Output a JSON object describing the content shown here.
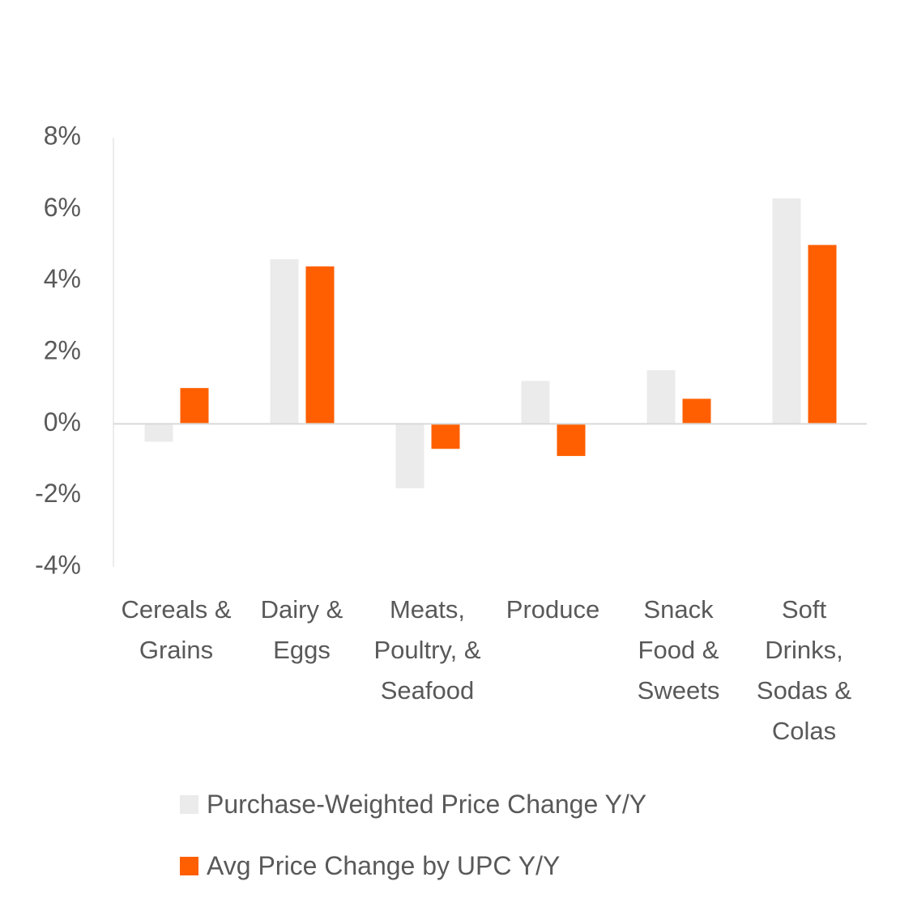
{
  "chart_data": {
    "type": "bar",
    "categories": [
      "Cereals & Grains",
      "Dairy & Eggs",
      "Meats, Poultry, & Seafood",
      "Produce",
      "Snack Food & Sweets",
      "Soft Drinks, Sodas & Colas"
    ],
    "series": [
      {
        "name": "Purchase-Weighted Price Change Y/Y",
        "color": "#ebebeb",
        "values": [
          -0.5,
          4.6,
          -1.8,
          1.2,
          1.5,
          6.3
        ]
      },
      {
        "name": "Avg Price Change by UPC Y/Y",
        "color": "#ff5f00",
        "values": [
          1.0,
          4.4,
          -0.7,
          -0.9,
          0.7,
          5.0
        ]
      }
    ],
    "ylim": [
      -4,
      8
    ],
    "yticks": [
      {
        "value": -4,
        "label": "-4%"
      },
      {
        "value": -2,
        "label": "-2%"
      },
      {
        "value": 0,
        "label": "0%"
      },
      {
        "value": 2,
        "label": "2%"
      },
      {
        "value": 4,
        "label": "4%"
      },
      {
        "value": 6,
        "label": "6%"
      },
      {
        "value": 8,
        "label": "8%"
      }
    ],
    "grid": false,
    "legend": "bottom"
  }
}
